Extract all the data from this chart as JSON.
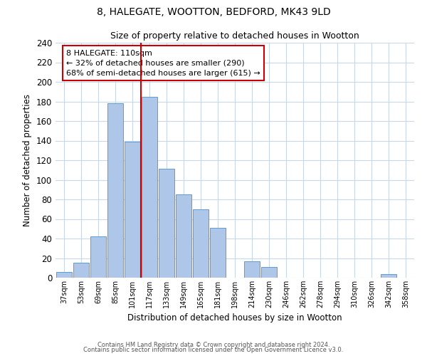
{
  "title": "8, HALEGATE, WOOTTON, BEDFORD, MK43 9LD",
  "subtitle": "Size of property relative to detached houses in Wootton",
  "xlabel": "Distribution of detached houses by size in Wootton",
  "ylabel": "Number of detached properties",
  "bar_color": "#aec6e8",
  "bar_edge_color": "#5b9bd5",
  "bins": [
    "37sqm",
    "53sqm",
    "69sqm",
    "85sqm",
    "101sqm",
    "117sqm",
    "133sqm",
    "149sqm",
    "165sqm",
    "181sqm",
    "198sqm",
    "214sqm",
    "230sqm",
    "246sqm",
    "262sqm",
    "278sqm",
    "294sqm",
    "310sqm",
    "326sqm",
    "342sqm",
    "358sqm"
  ],
  "values": [
    6,
    15,
    42,
    178,
    139,
    185,
    111,
    85,
    70,
    51,
    0,
    17,
    11,
    0,
    0,
    0,
    0,
    0,
    0,
    4,
    0
  ],
  "ylim": [
    0,
    240
  ],
  "yticks": [
    0,
    20,
    40,
    60,
    80,
    100,
    120,
    140,
    160,
    180,
    200,
    220,
    240
  ],
  "vline_x_idx": 5,
  "vline_color": "#cc0000",
  "annotation_title": "8 HALEGATE: 110sqm",
  "annotation_line1": "← 32% of detached houses are smaller (290)",
  "annotation_line2": "68% of semi-detached houses are larger (615) →",
  "annotation_box_color": "#ffffff",
  "annotation_box_edge": "#cc0000",
  "footer1": "Contains HM Land Registry data © Crown copyright and database right 2024.",
  "footer2": "Contains public sector information licensed under the Open Government Licence v3.0.",
  "background_color": "#ffffff",
  "grid_color": "#c8d8e8"
}
